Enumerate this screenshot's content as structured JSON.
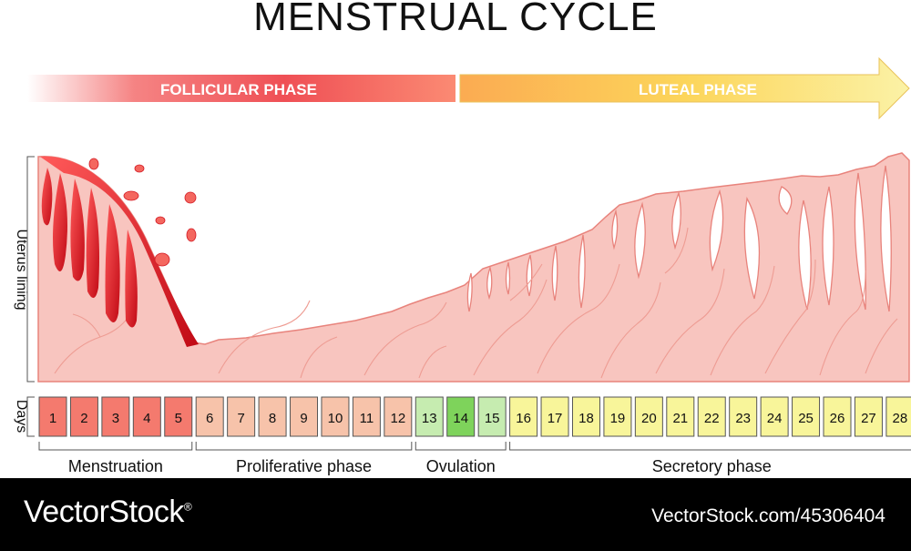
{
  "title": "MENSTRUAL CYCLE",
  "phases": {
    "follicular": "FOLLICULAR PHASE",
    "luteal": "LUTEAL PHASE"
  },
  "axis": {
    "y_label": "Uterus lining",
    "days_label": "Days"
  },
  "days": [
    {
      "day": "1",
      "stage": "menstruation"
    },
    {
      "day": "2",
      "stage": "menstruation"
    },
    {
      "day": "3",
      "stage": "menstruation"
    },
    {
      "day": "4",
      "stage": "menstruation"
    },
    {
      "day": "5",
      "stage": "menstruation"
    },
    {
      "day": "6",
      "stage": "proliferative"
    },
    {
      "day": "7",
      "stage": "proliferative"
    },
    {
      "day": "8",
      "stage": "proliferative"
    },
    {
      "day": "9",
      "stage": "proliferative"
    },
    {
      "day": "10",
      "stage": "proliferative"
    },
    {
      "day": "11",
      "stage": "proliferative"
    },
    {
      "day": "12",
      "stage": "proliferative"
    },
    {
      "day": "13",
      "stage": "ovulation-light"
    },
    {
      "day": "14",
      "stage": "ovulation"
    },
    {
      "day": "15",
      "stage": "ovulation-light"
    },
    {
      "day": "16",
      "stage": "secretory"
    },
    {
      "day": "17",
      "stage": "secretory"
    },
    {
      "day": "18",
      "stage": "secretory"
    },
    {
      "day": "19",
      "stage": "secretory"
    },
    {
      "day": "20",
      "stage": "secretory"
    },
    {
      "day": "21",
      "stage": "secretory"
    },
    {
      "day": "22",
      "stage": "secretory"
    },
    {
      "day": "23",
      "stage": "secretory"
    },
    {
      "day": "24",
      "stage": "secretory"
    },
    {
      "day": "25",
      "stage": "secretory"
    },
    {
      "day": "26",
      "stage": "secretory"
    },
    {
      "day": "27",
      "stage": "secretory"
    },
    {
      "day": "28",
      "stage": "secretory"
    }
  ],
  "stage_colors": {
    "menstruation": "#f47a6e",
    "proliferative": "#f7c3aa",
    "ovulation-light": "#c6ecb0",
    "ovulation": "#7ed35b",
    "secretory": "#f8f59a"
  },
  "stages": [
    {
      "label": "Menstruation",
      "from_day": 1,
      "to_day": 5
    },
    {
      "label": "Proliferative phase",
      "from_day": 6,
      "to_day": 12
    },
    {
      "label": "Ovulation",
      "from_day": 13,
      "to_day": 15
    },
    {
      "label": "Secretory phase",
      "from_day": 16,
      "to_day": 28
    }
  ],
  "colors": {
    "lining": "#f8c5bf",
    "lining_stroke": "#e8837c",
    "blood": "#d10f1d",
    "follicular_arrow": "#f25a5a",
    "luteal_arrow": "#fbd25a"
  },
  "footer": {
    "brand": "VectorStock",
    "registered": "®",
    "url": "VectorStock.com/45306404"
  }
}
